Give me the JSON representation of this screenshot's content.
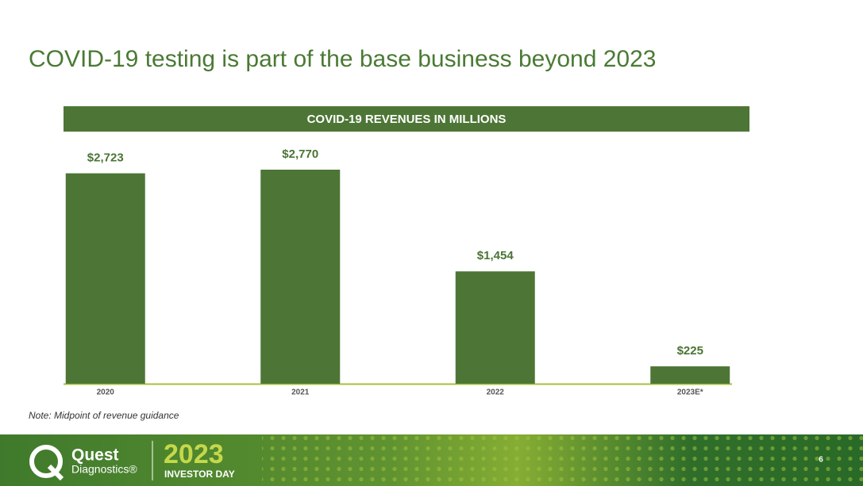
{
  "title": "COVID-19 testing is part of the base business beyond 2023",
  "chart_data": {
    "type": "bar",
    "title": "COVID-19 REVENUES IN MILLIONS",
    "categories": [
      "2020",
      "2021",
      "2022",
      "2023E*"
    ],
    "values": [
      2723,
      2770,
      1454,
      225
    ],
    "value_labels": [
      "$2,723",
      "$2,770",
      "$1,454",
      "$225"
    ],
    "color": "#4d7636"
  },
  "note": "Note: Midpoint of revenue guidance",
  "footer": {
    "brand": "Quest",
    "brand_sub": "Diagnostics®",
    "year": "2023",
    "event": "INVESTOR DAY",
    "page": "6"
  }
}
